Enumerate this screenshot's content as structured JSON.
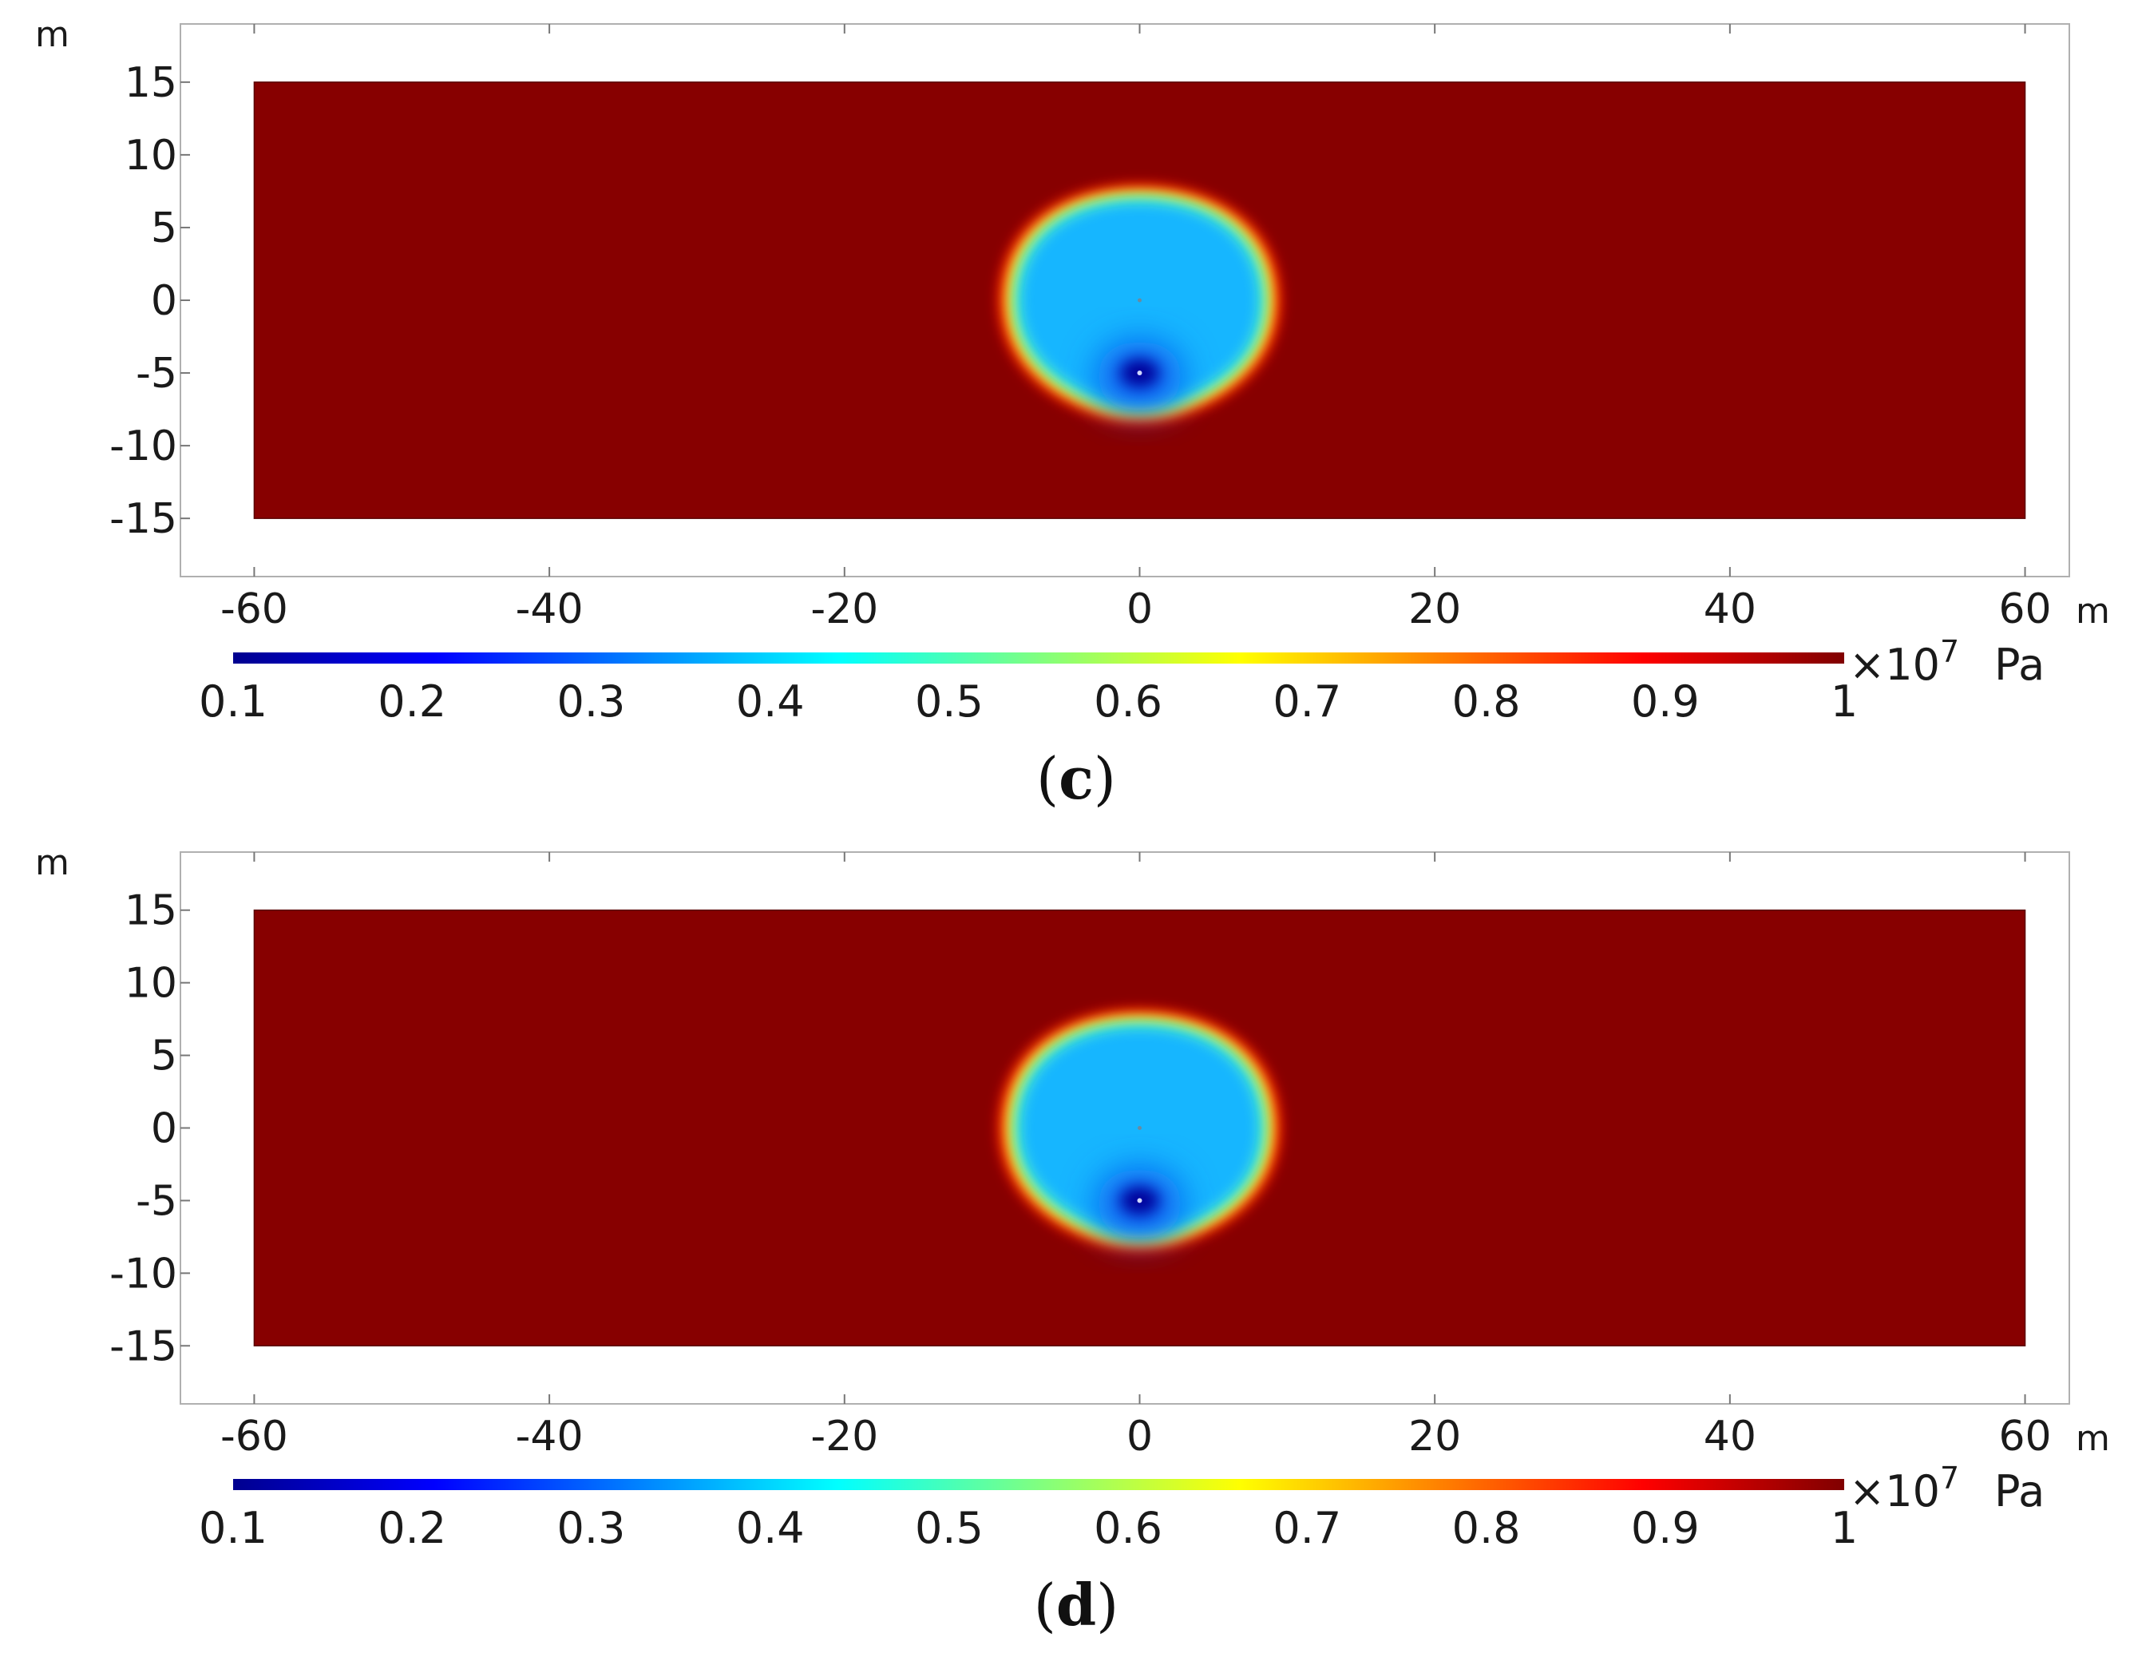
{
  "chart_data": [
    {
      "type": "heatmap",
      "panel_label": "(c)",
      "xlabel": "m",
      "ylabel": "m",
      "xticks": [
        -60,
        -40,
        -20,
        0,
        20,
        40,
        60
      ],
      "yticks": [
        15,
        10,
        5,
        0,
        -5,
        -10,
        -15
      ],
      "xlim": [
        -65,
        63
      ],
      "ylim": [
        -19,
        19
      ],
      "domain": {
        "x": [
          -60,
          60
        ],
        "y": [
          -15,
          15
        ]
      },
      "colorbar": {
        "ticks": [
          0.1,
          0.2,
          0.3,
          0.4,
          0.5,
          0.6,
          0.7,
          0.8,
          0.9,
          1
        ],
        "scale_label": "×10",
        "scale_exponent": "7",
        "unit": "Pa",
        "colormap": [
          "#00008f",
          "#0000ff",
          "#0080ff",
          "#00ffff",
          "#80ff80",
          "#ffff00",
          "#ff8000",
          "#ff0000",
          "#800000"
        ]
      },
      "field": {
        "background_value": 1.0,
        "zone_center": [
          0,
          0
        ],
        "zone_radius_x": 8.8,
        "zone_radius_y_top": 7.3,
        "zone_radius_y_bottom": 7.9,
        "zone_value": 0.4,
        "min_point": [
          0,
          -5
        ],
        "min_value": 0.1
      }
    },
    {
      "type": "heatmap",
      "panel_label": "(d)",
      "xlabel": "m",
      "ylabel": "m",
      "xticks": [
        -60,
        -40,
        -20,
        0,
        20,
        40,
        60
      ],
      "yticks": [
        15,
        10,
        5,
        0,
        -5,
        -10,
        -15
      ],
      "xlim": [
        -65,
        63
      ],
      "ylim": [
        -19,
        19
      ],
      "domain": {
        "x": [
          -60,
          60
        ],
        "y": [
          -15,
          15
        ]
      },
      "colorbar": {
        "ticks": [
          0.1,
          0.2,
          0.3,
          0.4,
          0.5,
          0.6,
          0.7,
          0.8,
          0.9,
          1
        ],
        "scale_label": "×10",
        "scale_exponent": "7",
        "unit": "Pa",
        "colormap": [
          "#00008f",
          "#0000ff",
          "#0080ff",
          "#00ffff",
          "#80ff80",
          "#ffff00",
          "#ff8000",
          "#ff0000",
          "#800000"
        ]
      },
      "field": {
        "background_value": 1.0,
        "zone_center": [
          0,
          0
        ],
        "zone_radius_x": 8.8,
        "zone_radius_y_top": 7.5,
        "zone_radius_y_bottom": 7.9,
        "zone_value": 0.39,
        "min_point": [
          0,
          -5
        ],
        "min_value": 0.1
      }
    }
  ]
}
